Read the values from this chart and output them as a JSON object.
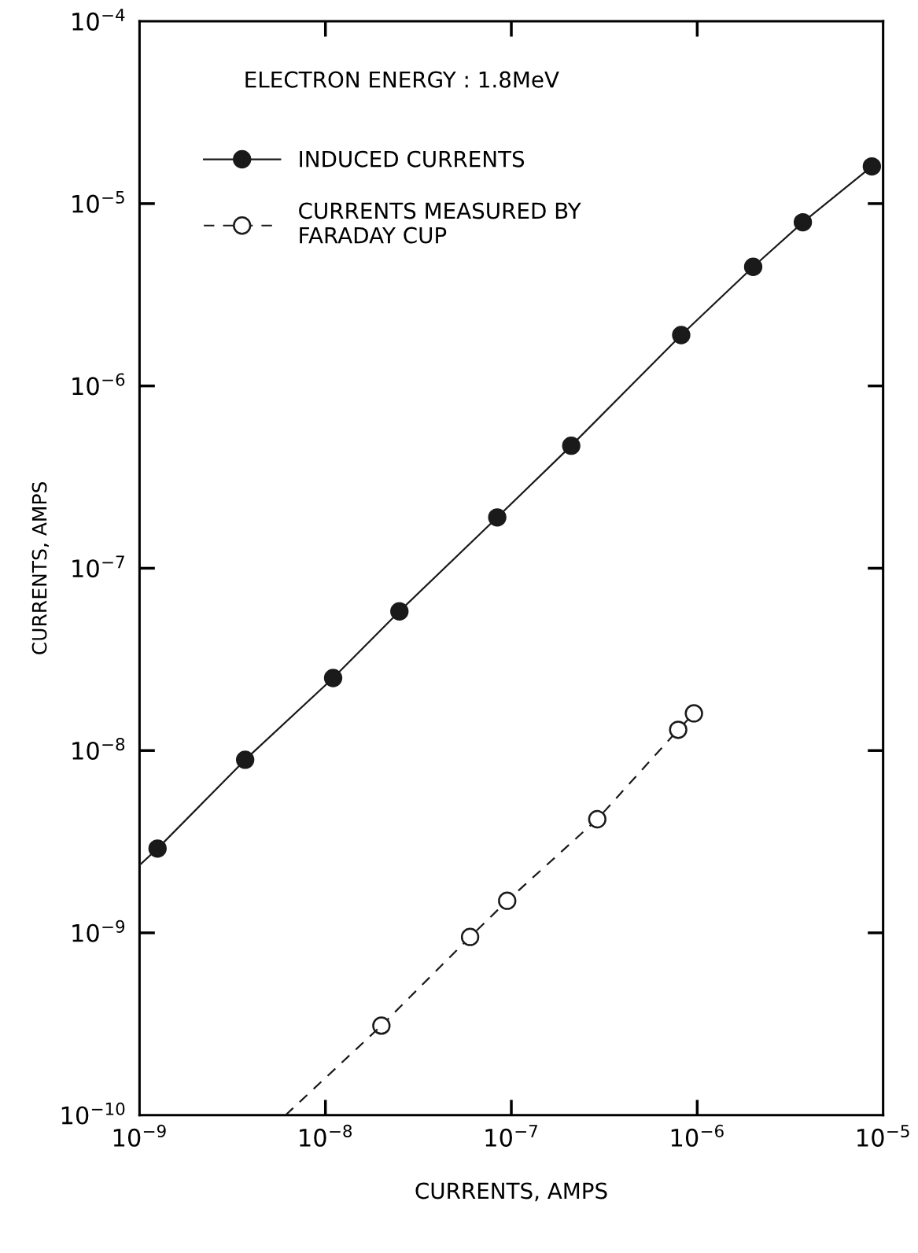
{
  "chart_data": {
    "type": "line",
    "xlabel": "CURRENTS, AMPS",
    "ylabel": "CURRENTS, AMPS",
    "log": "xy",
    "grid": false,
    "legend": "top left",
    "annotations": [
      "ELECTRON ENERGY : 1.8MeV"
    ],
    "xlim": [
      1e-09,
      1e-05
    ],
    "ylim": [
      1e-10,
      0.0001
    ],
    "xticks": [
      {
        "value": 1e-09,
        "label": "10$^{−9}$"
      },
      {
        "value": 1e-08,
        "label": "10$^{−8}$"
      },
      {
        "value": 1e-07,
        "label": "10$^{−7}$"
      },
      {
        "value": 1e-06,
        "label": "10$^{−6}$"
      },
      {
        "value": 1e-05,
        "label": "10$^{−5}$"
      }
    ],
    "yticks": [
      {
        "value": 1e-10,
        "label": "10$^{−10}$"
      },
      {
        "value": 1e-09,
        "label": "10$^{−9}$"
      },
      {
        "value": 1e-08,
        "label": "10$^{−8}$"
      },
      {
        "value": 1e-07,
        "label": "10$^{−7}$"
      },
      {
        "value": 1e-06,
        "label": "10$^{−6}$"
      },
      {
        "value": 1e-05,
        "label": "10$^{−5}$"
      },
      {
        "value": 0.0001,
        "label": "10$^{−4}$"
      }
    ],
    "series": [
      {
        "name": "INDUCED CURRENTS",
        "color": "#1a1a1a",
        "marker": "circle",
        "line_style": "solid",
        "x": [
          1.25e-09,
          3.7e-09,
          1.1e-08,
          2.5e-08,
          8.4e-08,
          2.1e-07,
          8.2e-07,
          2e-06,
          3.7e-06,
          8.7e-06
        ],
        "values": [
          2.9e-09,
          8.9e-09,
          2.5e-08,
          5.8e-08,
          1.9e-07,
          4.7e-07,
          1.9e-06,
          4.5e-06,
          7.9e-06,
          1.6e-05
        ]
      },
      {
        "name": "CURRENTS MEASURED BY\nFARADAY CUP",
        "color": "#1a1a1a",
        "marker": "circle",
        "line_style": "dashed",
        "x": [
          2e-08,
          6e-08,
          9.5e-08,
          2.9e-07,
          7.9e-07,
          9.6e-07
        ],
        "values": [
          3.1e-10,
          9.5e-10,
          1.5e-09,
          4.2e-09,
          1.3e-08,
          1.6e-08
        ]
      },
      {
        "color": "#1a1a1a",
        "marker": "none",
        "line_style": "solid",
        "x": [
          1e-09,
          1.25e-09
        ],
        "values": [
          2.35e-09,
          2.9e-09
        ]
      },
      {
        "color": "#1a1a1a",
        "marker": "none",
        "line_style": "dashed",
        "x": [
          6.1e-09,
          2e-08
        ],
        "values": [
          1e-10,
          3.1e-10
        ]
      }
    ]
  }
}
